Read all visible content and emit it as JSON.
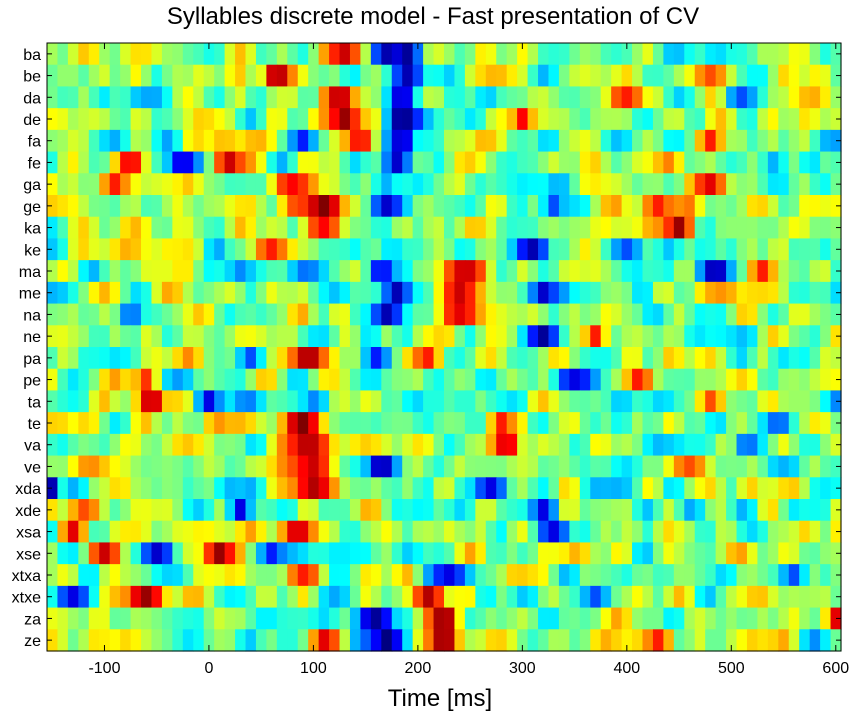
{
  "chart_data": {
    "type": "heatmap",
    "title": "Syllables discrete model - Fast presentation of CV",
    "xlabel": "Time [ms]",
    "ylabel": "",
    "xlim": [
      -155,
      605
    ],
    "x_ticks": [
      "-100",
      "0",
      "100",
      "200",
      "300",
      "400",
      "500",
      "600"
    ],
    "x_tick_values": [
      -100,
      0,
      100,
      200,
      300,
      400,
      500,
      600
    ],
    "categories": [
      "ba",
      "be",
      "da",
      "de",
      "fa",
      "fe",
      "ga",
      "ge",
      "ka",
      "ke",
      "ma",
      "me",
      "na",
      "ne",
      "pa",
      "pe",
      "ta",
      "te",
      "va",
      "ve",
      "xda",
      "xde",
      "xsa",
      "xse",
      "xtxa",
      "xtxe",
      "za",
      "ze"
    ],
    "colormap": "jet",
    "grid": false,
    "legend": "none",
    "features": [
      {
        "row": 0,
        "t": 130,
        "v": 0.85,
        "w": 12
      },
      {
        "row": 0,
        "t": 170,
        "v": -0.9,
        "w": 10
      },
      {
        "row": 0,
        "t": 190,
        "v": -0.95,
        "w": 10
      },
      {
        "row": 1,
        "t": 65,
        "v": 0.95,
        "w": 10
      },
      {
        "row": 1,
        "t": 190,
        "v": -0.9,
        "w": 12
      },
      {
        "row": 1,
        "t": 480,
        "v": 0.6,
        "w": 15
      },
      {
        "row": 2,
        "t": 125,
        "v": 0.9,
        "w": 12
      },
      {
        "row": 2,
        "t": 185,
        "v": -0.9,
        "w": 10
      },
      {
        "row": 2,
        "t": 400,
        "v": 0.7,
        "w": 12
      },
      {
        "row": 2,
        "t": 510,
        "v": -0.6,
        "w": 10
      },
      {
        "row": 3,
        "t": 130,
        "v": 0.95,
        "w": 12
      },
      {
        "row": 3,
        "t": 185,
        "v": -1.0,
        "w": 12
      },
      {
        "row": 3,
        "t": 300,
        "v": 0.75,
        "w": 10
      },
      {
        "row": 4,
        "t": 90,
        "v": -0.7,
        "w": 10
      },
      {
        "row": 4,
        "t": 145,
        "v": 0.8,
        "w": 10
      },
      {
        "row": 4,
        "t": 185,
        "v": -0.9,
        "w": 10
      },
      {
        "row": 4,
        "t": 480,
        "v": 0.7,
        "w": 12
      },
      {
        "row": 5,
        "t": -75,
        "v": 0.8,
        "w": 12
      },
      {
        "row": 5,
        "t": -25,
        "v": -0.85,
        "w": 10
      },
      {
        "row": 5,
        "t": 20,
        "v": 0.85,
        "w": 12
      },
      {
        "row": 5,
        "t": 180,
        "v": -0.85,
        "w": 10
      },
      {
        "row": 6,
        "t": -90,
        "v": 0.7,
        "w": 12
      },
      {
        "row": 6,
        "t": 80,
        "v": 0.75,
        "w": 15
      },
      {
        "row": 6,
        "t": 480,
        "v": 0.8,
        "w": 12
      },
      {
        "row": 7,
        "t": 110,
        "v": 1.0,
        "w": 18
      },
      {
        "row": 7,
        "t": 170,
        "v": -0.85,
        "w": 12
      },
      {
        "row": 7,
        "t": 330,
        "v": -0.6,
        "w": 10
      },
      {
        "row": 7,
        "t": 430,
        "v": 0.7,
        "w": 12
      },
      {
        "row": 8,
        "t": 110,
        "v": 0.75,
        "w": 15
      },
      {
        "row": 8,
        "t": 450,
        "v": 0.95,
        "w": 12
      },
      {
        "row": 9,
        "t": 60,
        "v": 0.7,
        "w": 15
      },
      {
        "row": 9,
        "t": 310,
        "v": -0.9,
        "w": 12
      },
      {
        "row": 9,
        "t": 400,
        "v": -0.6,
        "w": 10
      },
      {
        "row": 10,
        "t": 165,
        "v": -0.8,
        "w": 10
      },
      {
        "row": 10,
        "t": 245,
        "v": 0.85,
        "w": 20
      },
      {
        "row": 10,
        "t": 485,
        "v": -0.95,
        "w": 12
      },
      {
        "row": 10,
        "t": 530,
        "v": 0.7,
        "w": 10
      },
      {
        "row": 11,
        "t": 180,
        "v": -0.9,
        "w": 12
      },
      {
        "row": 11,
        "t": 240,
        "v": 0.85,
        "w": 18
      },
      {
        "row": 11,
        "t": 320,
        "v": -0.85,
        "w": 10
      },
      {
        "row": 12,
        "t": 170,
        "v": -0.9,
        "w": 12
      },
      {
        "row": 12,
        "t": 240,
        "v": 0.8,
        "w": 18
      },
      {
        "row": 12,
        "t": -75,
        "v": -0.6,
        "w": 10
      },
      {
        "row": 13,
        "t": 320,
        "v": -0.95,
        "w": 12
      },
      {
        "row": 13,
        "t": 370,
        "v": 0.7,
        "w": 10
      },
      {
        "row": 14,
        "t": 95,
        "v": 0.95,
        "w": 15
      },
      {
        "row": 14,
        "t": 210,
        "v": 0.7,
        "w": 10
      },
      {
        "row": 14,
        "t": 160,
        "v": -0.7,
        "w": 10
      },
      {
        "row": 14,
        "t": 40,
        "v": -0.6,
        "w": 10
      },
      {
        "row": 15,
        "t": 350,
        "v": -0.8,
        "w": 15
      },
      {
        "row": 15,
        "t": 410,
        "v": 0.7,
        "w": 10
      },
      {
        "row": 15,
        "t": -60,
        "v": 0.65,
        "w": 10
      },
      {
        "row": 16,
        "t": -55,
        "v": 0.95,
        "w": 10
      },
      {
        "row": 16,
        "t": 0,
        "v": -0.8,
        "w": 10
      },
      {
        "row": 16,
        "t": 480,
        "v": 0.6,
        "w": 10
      },
      {
        "row": 17,
        "t": 90,
        "v": 1.0,
        "w": 15
      },
      {
        "row": 17,
        "t": 280,
        "v": 0.7,
        "w": 10
      },
      {
        "row": 17,
        "t": 545,
        "v": -0.6,
        "w": 10
      },
      {
        "row": 18,
        "t": 95,
        "v": 0.9,
        "w": 18
      },
      {
        "row": 18,
        "t": 285,
        "v": 0.85,
        "w": 10
      },
      {
        "row": 18,
        "t": 515,
        "v": -0.6,
        "w": 10
      },
      {
        "row": 19,
        "t": 100,
        "v": 0.85,
        "w": 18
      },
      {
        "row": 19,
        "t": 165,
        "v": -0.95,
        "w": 10
      },
      {
        "row": 19,
        "t": 460,
        "v": 0.6,
        "w": 12
      },
      {
        "row": 20,
        "t": 100,
        "v": 0.9,
        "w": 18
      },
      {
        "row": 20,
        "t": 270,
        "v": -0.8,
        "w": 12
      },
      {
        "row": 20,
        "t": -150,
        "v": -0.9,
        "w": 5
      },
      {
        "row": 21,
        "t": 30,
        "v": -0.8,
        "w": 10
      },
      {
        "row": 21,
        "t": 320,
        "v": -0.8,
        "w": 10
      },
      {
        "row": 21,
        "t": -120,
        "v": 0.6,
        "w": 12
      },
      {
        "row": 22,
        "t": 85,
        "v": 0.85,
        "w": 15
      },
      {
        "row": 22,
        "t": -130,
        "v": 0.8,
        "w": 10
      },
      {
        "row": 22,
        "t": 330,
        "v": -0.8,
        "w": 10
      },
      {
        "row": 23,
        "t": -100,
        "v": 0.85,
        "w": 12
      },
      {
        "row": 23,
        "t": -50,
        "v": -0.85,
        "w": 10
      },
      {
        "row": 23,
        "t": 10,
        "v": 0.95,
        "w": 12
      },
      {
        "row": 23,
        "t": 60,
        "v": -0.7,
        "w": 10
      },
      {
        "row": 24,
        "t": 230,
        "v": -0.8,
        "w": 15
      },
      {
        "row": 24,
        "t": 90,
        "v": 0.7,
        "w": 12
      },
      {
        "row": 24,
        "t": 560,
        "v": -0.6,
        "w": 10
      },
      {
        "row": 25,
        "t": -60,
        "v": 0.95,
        "w": 15
      },
      {
        "row": 25,
        "t": 210,
        "v": 0.9,
        "w": 12
      },
      {
        "row": 25,
        "t": -130,
        "v": -0.8,
        "w": 10
      },
      {
        "row": 25,
        "t": 370,
        "v": -0.6,
        "w": 10
      },
      {
        "row": 26,
        "t": 160,
        "v": -0.95,
        "w": 12
      },
      {
        "row": 26,
        "t": 225,
        "v": 1.0,
        "w": 12
      },
      {
        "row": 26,
        "t": 600,
        "v": 0.8,
        "w": 5
      },
      {
        "row": 27,
        "t": 170,
        "v": -1.0,
        "w": 12
      },
      {
        "row": 27,
        "t": 225,
        "v": 1.0,
        "w": 12
      },
      {
        "row": 27,
        "t": 110,
        "v": 0.8,
        "w": 10
      },
      {
        "row": 27,
        "t": 430,
        "v": 0.7,
        "w": 10
      }
    ]
  }
}
